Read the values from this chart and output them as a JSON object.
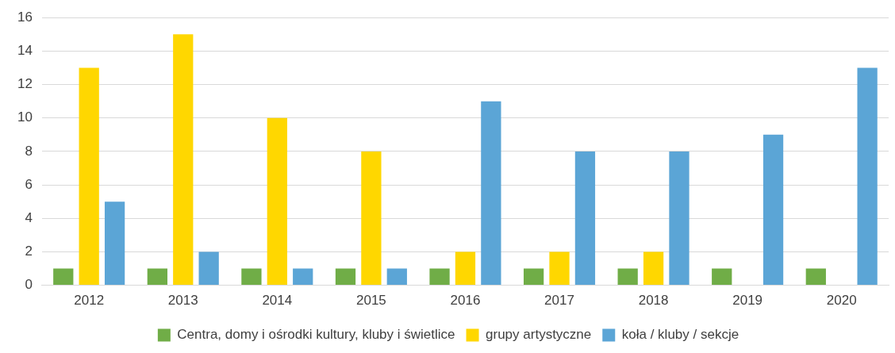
{
  "chart_data": {
    "type": "bar",
    "categories": [
      "2012",
      "2013",
      "2014",
      "2015",
      "2016",
      "2017",
      "2018",
      "2019",
      "2020"
    ],
    "series": [
      {
        "name": "Centra, domy i ośrodki kultury, kluby i świetlice",
        "color": "#70ad47",
        "values": [
          1,
          1,
          1,
          1,
          1,
          1,
          1,
          1,
          1
        ]
      },
      {
        "name": "grupy artystyczne",
        "color": "#ffd700",
        "values": [
          13,
          15,
          10,
          8,
          2,
          2,
          2,
          0,
          0
        ]
      },
      {
        "name": "koła / kluby / sekcje",
        "color": "#5ba5d6",
        "values": [
          5,
          2,
          1,
          1,
          11,
          8,
          8,
          9,
          13
        ]
      }
    ],
    "ylim": [
      0,
      16
    ],
    "yticks": [
      0,
      2,
      4,
      6,
      8,
      10,
      12,
      14,
      16
    ],
    "grid": "y",
    "legend": "bottom"
  }
}
